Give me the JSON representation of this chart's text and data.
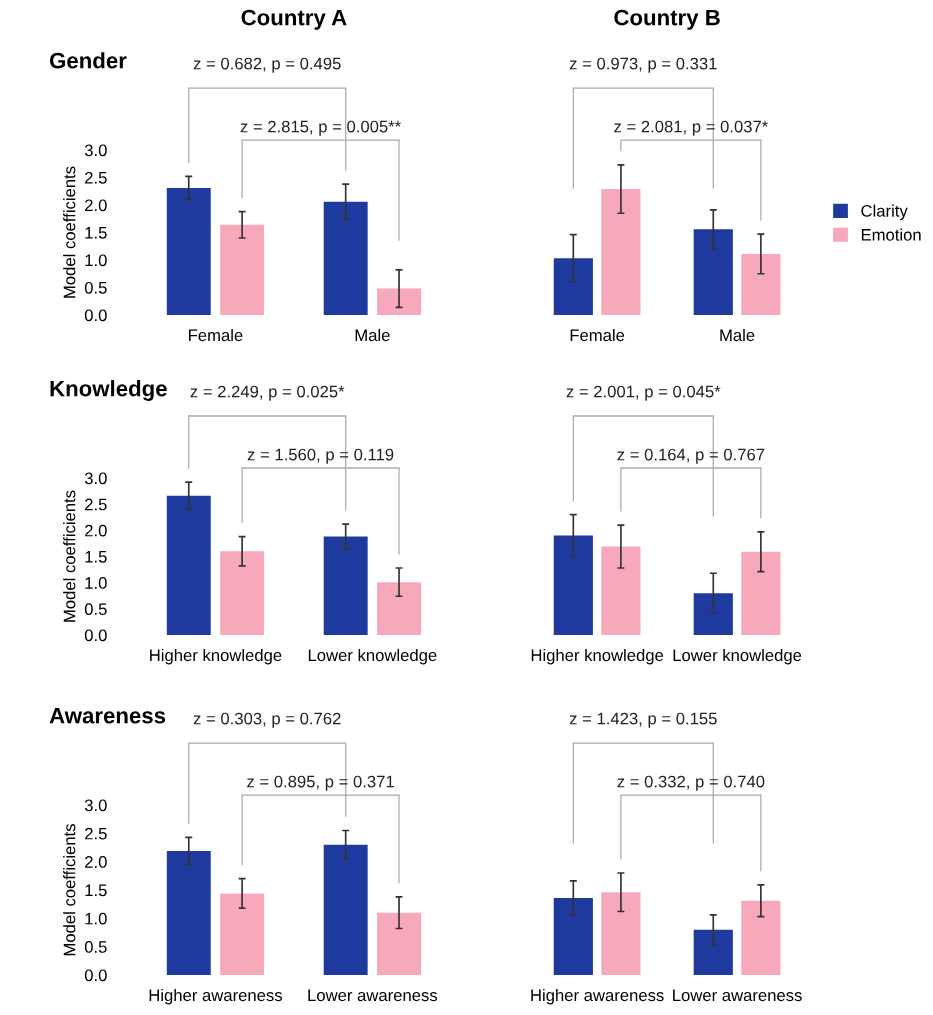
{
  "chart_data": [
    {
      "type": "bar",
      "title": "Country A",
      "subtitle": "Gender",
      "ylabel": "Model coefficients",
      "categories": [
        "Female",
        "Male"
      ],
      "ylim": [
        0,
        3.0
      ],
      "yticks": [
        {
          "value": 0,
          "label": "0.0"
        },
        0.5,
        {
          "value": 1,
          "label": "1.0"
        },
        1.5,
        {
          "value": 2,
          "label": "2.0"
        },
        2.5,
        {
          "value": 3,
          "label": "3.0"
        }
      ],
      "grid": false,
      "series": [
        {
          "color": "#1f3a9e",
          "values": [
            2.31,
            2.06
          ],
          "errors": [
            0.21,
            0.32
          ]
        },
        {
          "color": "#f7a8bb",
          "values": [
            1.64,
            0.48
          ],
          "errors": [
            0.24,
            0.34
          ]
        }
      ],
      "annotations": [
        "z = 0.682, p = 0.495",
        "z = 2.815, p = 0.005**"
      ]
    },
    {
      "type": "bar",
      "title": "Country B",
      "categories": [
        "Female",
        "Male"
      ],
      "ylim": [
        0,
        3.0
      ],
      "tick_labels": "x",
      "grid": false,
      "legend": "right",
      "series": [
        {
          "name": "Clarity",
          "color": "#1f3a9e",
          "values": [
            1.03,
            1.56
          ],
          "errors": [
            0.43,
            0.35
          ]
        },
        {
          "name": "Emotion",
          "color": "#f7a8bb",
          "values": [
            2.29,
            1.11
          ],
          "errors": [
            0.44,
            0.36
          ]
        }
      ],
      "annotations": [
        "z = 0.973, p = 0.331",
        "z = 2.081, p = 0.037*"
      ]
    },
    {
      "type": "bar",
      "subtitle": "Knowledge",
      "ylabel": "Model coefficients",
      "categories": [
        "Higher knowledge",
        "Lower knowledge"
      ],
      "ylim": [
        0,
        3.0
      ],
      "yticks": [
        {
          "value": 0,
          "label": "0.0"
        },
        0.5,
        {
          "value": 1,
          "label": "1.0"
        },
        1.5,
        {
          "value": 2,
          "label": "2.0"
        },
        2.5,
        {
          "value": 3,
          "label": "3.0"
        }
      ],
      "grid": false,
      "series": [
        {
          "color": "#1f3a9e",
          "values": [
            2.66,
            1.88
          ],
          "errors": [
            0.26,
            0.24
          ]
        },
        {
          "color": "#f7a8bb",
          "values": [
            1.6,
            1.01
          ],
          "errors": [
            0.28,
            0.27
          ]
        }
      ],
      "annotations": [
        "z = 2.249, p = 0.025*",
        "z = 1.560, p = 0.119"
      ]
    },
    {
      "type": "bar",
      "categories": [
        "Higher knowledge",
        "Lower knowledge"
      ],
      "ylim": [
        0,
        3.0
      ],
      "tick_labels": "x",
      "grid": false,
      "series": [
        {
          "color": "#1f3a9e",
          "values": [
            1.9,
            0.8
          ],
          "errors": [
            0.4,
            0.38
          ]
        },
        {
          "color": "#f7a8bb",
          "values": [
            1.69,
            1.59
          ],
          "errors": [
            0.41,
            0.38
          ]
        }
      ],
      "annotations": [
        "z = 2.001, p = 0.045*",
        "z = 0.164, p = 0.767"
      ]
    },
    {
      "type": "bar",
      "subtitle": "Awareness",
      "ylabel": "Model coefficients",
      "categories": [
        "Higher awareness",
        "Lower awareness"
      ],
      "ylim": [
        0,
        3.0
      ],
      "yticks": [
        {
          "value": 0,
          "label": "0.0"
        },
        0.5,
        {
          "value": 1,
          "label": "1.0"
        },
        1.5,
        {
          "value": 2,
          "label": "2.0"
        },
        2.5,
        {
          "value": 3,
          "label": "3.0"
        }
      ],
      "grid": false,
      "series": [
        {
          "color": "#1f3a9e",
          "values": [
            2.19,
            2.3
          ],
          "errors": [
            0.24,
            0.25
          ]
        },
        {
          "color": "#f7a8bb",
          "values": [
            1.44,
            1.1
          ],
          "errors": [
            0.26,
            0.28
          ]
        }
      ],
      "annotations": [
        "z = 0.303, p = 0.762",
        "z = 0.895, p = 0.371"
      ]
    },
    {
      "type": "bar",
      "categories": [
        "Higher awareness",
        "Lower awareness"
      ],
      "ylim": [
        0,
        3.0
      ],
      "tick_labels": "x",
      "grid": false,
      "series": [
        {
          "color": "#1f3a9e",
          "values": [
            1.36,
            0.8
          ],
          "errors": [
            0.3,
            0.26
          ]
        },
        {
          "color": "#f7a8bb",
          "values": [
            1.46,
            1.31
          ],
          "errors": [
            0.34,
            0.28
          ]
        }
      ],
      "annotations": [
        "z = 1.423, p = 0.155",
        "z = 0.332, p = 0.740"
      ]
    }
  ]
}
